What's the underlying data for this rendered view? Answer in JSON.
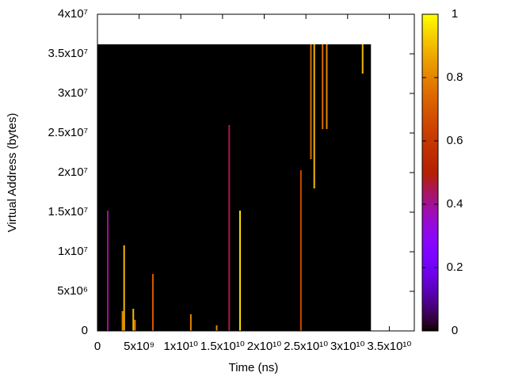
{
  "chart_data": {
    "type": "heatmap",
    "xlabel": "Time (ns)",
    "ylabel": "Virtual Address (bytes)",
    "xlim": [
      0,
      38000000000
    ],
    "ylim": [
      0,
      40000000
    ],
    "xticks": [
      0,
      {
        "value": 5000000000,
        "label": "5x10⁹"
      },
      {
        "value": 10000000000,
        "label": "1x10¹⁰"
      },
      {
        "value": 15000000000,
        "label": "1.5x10¹⁰"
      },
      {
        "value": 20000000000,
        "label": "2x10¹⁰"
      },
      {
        "value": 25000000000,
        "label": "2.5x10¹⁰"
      },
      {
        "value": 30000000000,
        "label": "3x10¹⁰"
      },
      {
        "value": 35000000000,
        "label": "3.5x10¹⁰"
      }
    ],
    "yticks": [
      0,
      {
        "value": 5000000,
        "label": "5x10⁶"
      },
      {
        "value": 10000000,
        "label": "1x10⁷"
      },
      {
        "value": 15000000,
        "label": "1.5x10⁷"
      },
      {
        "value": 20000000,
        "label": "2x10⁷"
      },
      {
        "value": 25000000,
        "label": "2.5x10⁷"
      },
      {
        "value": 30000000,
        "label": "3x10⁷"
      },
      {
        "value": 35000000,
        "label": "3.5x10⁷"
      },
      {
        "value": 40000000,
        "label": "4x10⁷"
      }
    ],
    "data_xmax": 32800000000,
    "data_ymax": 36200000,
    "background_color": "#000000",
    "palette": "rgbformulae-7-5-15",
    "cblim": [
      0,
      1
    ],
    "cbticks": [
      0,
      0.2,
      0.4,
      0.6,
      0.8,
      1
    ],
    "streaks": [
      {
        "x": 1240000000,
        "y0": 0,
        "y1": 15200000,
        "value": 0.4
      },
      {
        "x": 3000000000,
        "y0": 0,
        "y1": 2500000,
        "value": 0.8
      },
      {
        "x": 3200000000,
        "y0": 0,
        "y1": 10800000,
        "value": 0.9
      },
      {
        "x": 4300000000,
        "y0": 0,
        "y1": 2800000,
        "value": 0.9
      },
      {
        "x": 4500000000,
        "y0": 0,
        "y1": 1400000,
        "value": 0.8
      },
      {
        "x": 6650000000,
        "y0": 0,
        "y1": 7200000,
        "value": 0.7
      },
      {
        "x": 11200000000,
        "y0": 0,
        "y1": 2100000,
        "value": 0.8
      },
      {
        "x": 14300000000,
        "y0": 0,
        "y1": 700000,
        "value": 0.8
      },
      {
        "x": 15800000000,
        "y0": 0,
        "y1": 26000000,
        "value": 0.45
      },
      {
        "x": 17100000000,
        "y0": 0,
        "y1": 15200000,
        "value": 0.95
      },
      {
        "x": 24400000000,
        "y0": 0,
        "y1": 20300000,
        "value": 0.65
      },
      {
        "x": 25600000000,
        "y0": 21700000,
        "y1": 36200000,
        "value": 0.75
      },
      {
        "x": 26000000000,
        "y0": 18000000,
        "y1": 36200000,
        "value": 0.9
      },
      {
        "x": 27000000000,
        "y0": 25500000,
        "y1": 36200000,
        "value": 0.75
      },
      {
        "x": 27500000000,
        "y0": 25500000,
        "y1": 36200000,
        "value": 0.8
      },
      {
        "x": 31800000000,
        "y0": 32500000,
        "y1": 36200000,
        "value": 0.9
      }
    ]
  }
}
